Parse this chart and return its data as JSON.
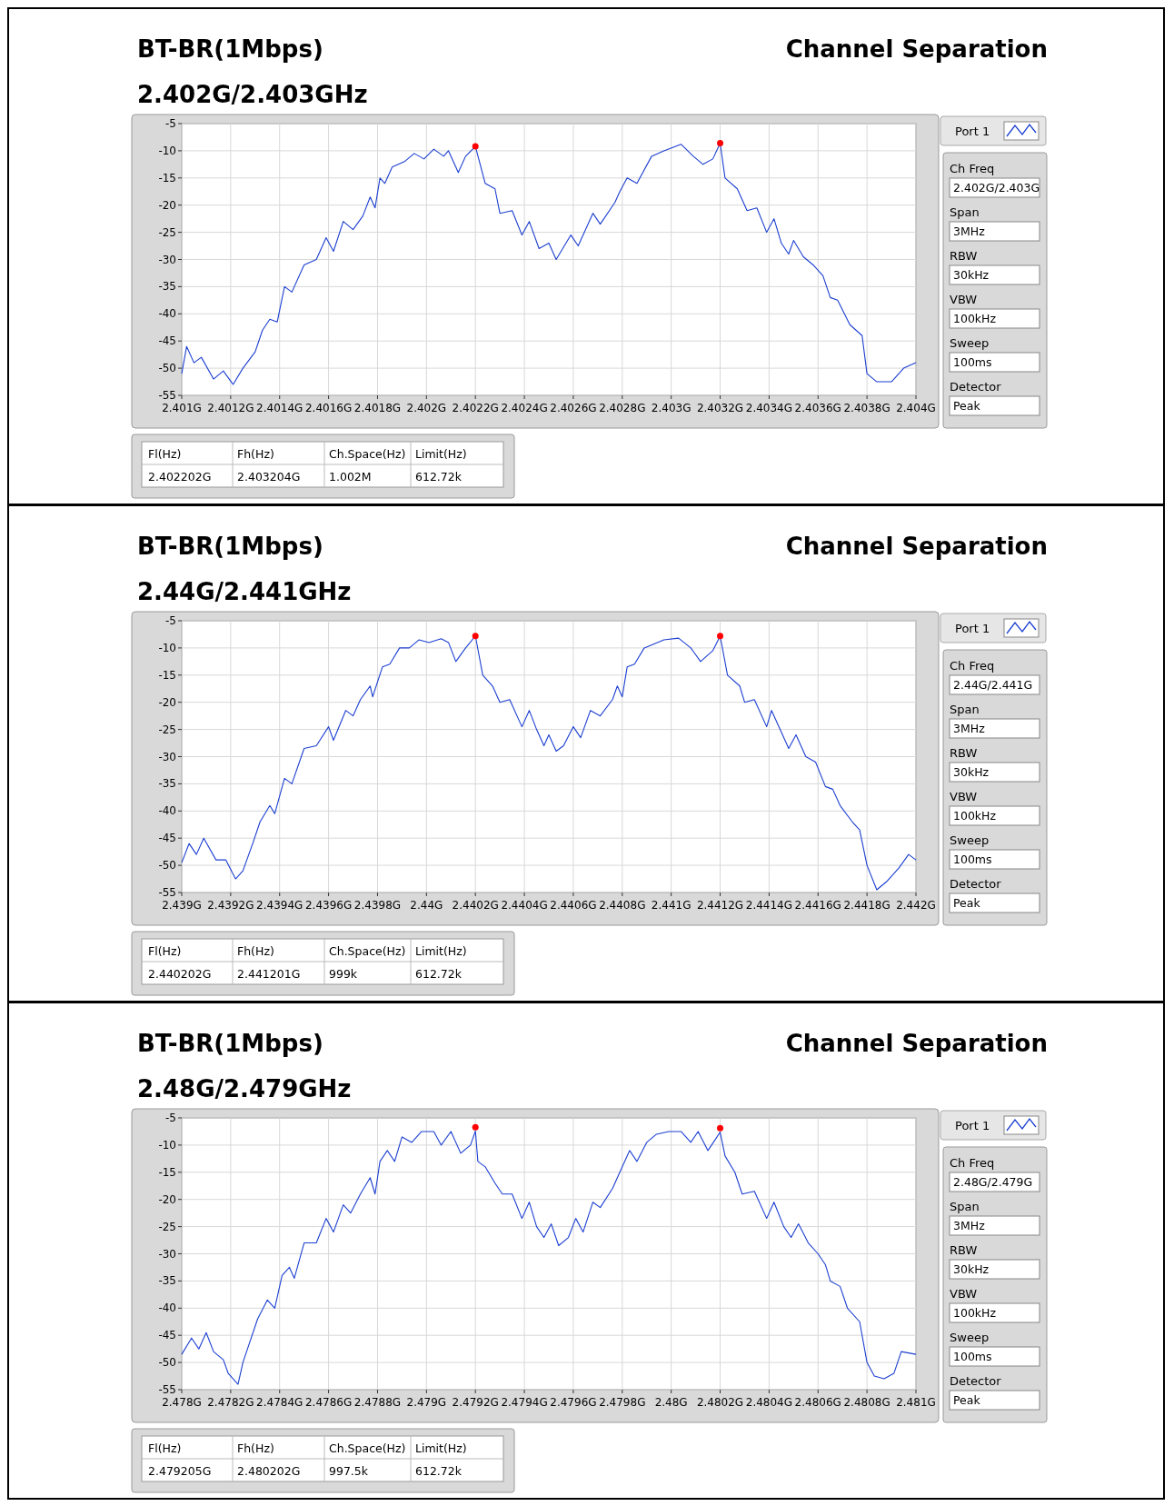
{
  "chart_data": [
    {
      "type": "line",
      "title": "BT-BR(1Mbps)",
      "subtitle": "2.402G/2.403GHz",
      "annotations": [
        "Channel Separation",
        "Ch Freq",
        "2.402G/2.403G",
        "Span",
        "3MHz",
        "RBW",
        "30kHz",
        "VBW",
        "100kHz",
        "Sweep",
        "100ms",
        "Detector",
        "Peak",
        "Fl(Hz)",
        "Fh(Hz)",
        "Ch.Space(Hz)",
        "Limit(Hz)",
        "2.402202G",
        "2.403204G",
        "1.002M",
        "612.72k"
      ],
      "xlim": [
        2.401,
        2.404
      ],
      "xticks": [
        {
          "value": 2.401,
          "label": "2.401G"
        },
        {
          "value": 2.4012,
          "label": "2.4012G"
        },
        {
          "value": 2.4014,
          "label": "2.4014G"
        },
        {
          "value": 2.4016,
          "label": "2.4016G"
        },
        {
          "value": 2.4018,
          "label": "2.4018G"
        },
        {
          "value": 2.402,
          "label": "2.402G"
        },
        {
          "value": 2.4022,
          "label": "2.4022G"
        },
        {
          "value": 2.4024,
          "label": "2.4024G"
        },
        {
          "value": 2.4026,
          "label": "2.4026G"
        },
        {
          "value": 2.4028,
          "label": "2.4028G"
        },
        {
          "value": 2.403,
          "label": "2.403G"
        },
        {
          "value": 2.4032,
          "label": "2.4032G"
        },
        {
          "value": 2.4034,
          "label": "2.4034G"
        },
        {
          "value": 2.4036,
          "label": "2.4036G"
        },
        {
          "value": 2.4038,
          "label": "2.4038G"
        },
        {
          "value": 2.404,
          "label": "2.404G"
        }
      ],
      "ylim": [
        -55,
        -5
      ],
      "yticks": [
        -55,
        -50,
        -45,
        -40,
        -35,
        -30,
        -25,
        -20,
        -15,
        -10,
        -5
      ],
      "grid": true,
      "legend": "top right",
      "series": [
        {
          "name": "Port 1",
          "color": "#1c3fd1",
          "x": [
            2.401,
            2.40102,
            2.40105,
            2.40108,
            2.40113,
            2.40117,
            2.40121,
            2.40125,
            2.4013,
            2.40133,
            2.40136,
            2.40139,
            2.40142,
            2.40145,
            2.4015,
            2.40155,
            2.40159,
            2.40162,
            2.40166,
            2.4017,
            2.40174,
            2.40177,
            2.40179,
            2.40181,
            2.40183,
            2.40186,
            2.40191,
            2.40195,
            2.40199,
            2.40203,
            2.40207,
            2.40209,
            2.40213,
            2.40216,
            2.4022,
            2.40224,
            2.40228,
            2.4023,
            2.40235,
            2.40239,
            2.40242,
            2.40246,
            2.4025,
            2.40253,
            2.40259,
            2.40262,
            2.40268,
            2.40271,
            2.40277,
            2.40279,
            2.40282,
            2.40286,
            2.40292,
            2.40297,
            2.40304,
            2.40309,
            2.40313,
            2.40317,
            2.4032,
            2.40322,
            2.40327,
            2.40331,
            2.40335,
            2.40339,
            2.40342,
            2.40345,
            2.40348,
            2.4035,
            2.40354,
            2.40358,
            2.40362,
            2.40365,
            2.40368,
            2.40373,
            2.40378,
            2.4038,
            2.40384,
            2.4039,
            2.40395,
            2.404
          ],
          "values": [
            -51,
            -46,
            -49,
            -48,
            -52,
            -50.5,
            -53,
            -50,
            -47,
            -43,
            -41,
            -41.5,
            -35,
            -36,
            -31,
            -30,
            -26,
            -28.5,
            -23,
            -24.5,
            -22,
            -18.5,
            -20.5,
            -15,
            -16,
            -13,
            -12,
            -10.5,
            -11.5,
            -9.7,
            -11,
            -10,
            -14,
            -11,
            -9.2,
            -16,
            -17,
            -21.5,
            -21,
            -25.5,
            -23,
            -28,
            -27,
            -30,
            -25.5,
            -27.5,
            -21.5,
            -23.5,
            -19.5,
            -17.5,
            -15,
            -16,
            -11,
            -10,
            -8.8,
            -11,
            -12.5,
            -11.5,
            -8.6,
            -15,
            -17,
            -21,
            -20.5,
            -25,
            -22.5,
            -27,
            -29,
            -26.5,
            -29.5,
            -31,
            -33,
            -37,
            -37.5,
            -42,
            -44,
            -51,
            -52.5,
            -52.5,
            -50,
            -49
          ]
        },
        {
          "type": "scatter",
          "marker": "circle",
          "color": "#ff0000",
          "x": [
            2.4022,
            2.4032
          ],
          "values": [
            -9.2,
            -8.6
          ]
        }
      ]
    },
    {
      "type": "line",
      "title": "BT-BR(1Mbps)",
      "subtitle": "2.44G/2.441GHz",
      "annotations": [
        "Channel Separation",
        "Ch Freq",
        "2.44G/2.441G",
        "Span",
        "3MHz",
        "RBW",
        "30kHz",
        "VBW",
        "100kHz",
        "Sweep",
        "100ms",
        "Detector",
        "Peak",
        "Fl(Hz)",
        "Fh(Hz)",
        "Ch.Space(Hz)",
        "Limit(Hz)",
        "2.440202G",
        "2.441201G",
        "999k",
        "612.72k"
      ],
      "xlim": [
        2.439,
        2.442
      ],
      "xticks": [
        {
          "value": 2.439,
          "label": "2.439G"
        },
        {
          "value": 2.4392,
          "label": "2.4392G"
        },
        {
          "value": 2.4394,
          "label": "2.4394G"
        },
        {
          "value": 2.4396,
          "label": "2.4396G"
        },
        {
          "value": 2.4398,
          "label": "2.4398G"
        },
        {
          "value": 2.44,
          "label": "2.44G"
        },
        {
          "value": 2.4402,
          "label": "2.4402G"
        },
        {
          "value": 2.4404,
          "label": "2.4404G"
        },
        {
          "value": 2.4406,
          "label": "2.4406G"
        },
        {
          "value": 2.4408,
          "label": "2.4408G"
        },
        {
          "value": 2.441,
          "label": "2.441G"
        },
        {
          "value": 2.4412,
          "label": "2.4412G"
        },
        {
          "value": 2.4414,
          "label": "2.4414G"
        },
        {
          "value": 2.4416,
          "label": "2.4416G"
        },
        {
          "value": 2.4418,
          "label": "2.4418G"
        },
        {
          "value": 2.442,
          "label": "2.442G"
        }
      ],
      "ylim": [
        -55,
        -5
      ],
      "yticks": [
        -55,
        -50,
        -45,
        -40,
        -35,
        -30,
        -25,
        -20,
        -15,
        -10,
        -5
      ],
      "grid": true,
      "legend": "top right",
      "series": [
        {
          "name": "Port 1",
          "color": "#1c3fd1",
          "x": [
            2.439,
            2.43903,
            2.43906,
            2.43909,
            2.43914,
            2.43918,
            2.43922,
            2.43925,
            2.43929,
            2.43932,
            2.43936,
            2.43938,
            2.43942,
            2.43945,
            2.4395,
            2.43955,
            2.4396,
            2.43962,
            2.43967,
            2.4397,
            2.43973,
            2.43977,
            2.43978,
            2.43982,
            2.43985,
            2.43989,
            2.43993,
            2.43997,
            2.44001,
            2.44006,
            2.44009,
            2.44012,
            2.44016,
            2.4402,
            2.44023,
            2.44027,
            2.4403,
            2.44034,
            2.44039,
            2.44042,
            2.44045,
            2.44048,
            2.4405,
            2.44053,
            2.44056,
            2.4406,
            2.44063,
            2.44067,
            2.44071,
            2.44076,
            2.44078,
            2.4408,
            2.44082,
            2.44085,
            2.44089,
            2.44097,
            2.44103,
            2.44108,
            2.44112,
            2.44117,
            2.4412,
            2.44123,
            2.44128,
            2.4413,
            2.44134,
            2.44139,
            2.44141,
            2.44145,
            2.44148,
            2.44151,
            2.44155,
            2.44159,
            2.44163,
            2.44166,
            2.44169,
            2.44174,
            2.44177,
            2.4418,
            2.44184,
            2.44188,
            2.44193,
            2.44197,
            2.442
          ],
          "values": [
            -49.5,
            -46,
            -48,
            -45,
            -49,
            -49,
            -52.5,
            -51,
            -46,
            -42,
            -39,
            -40.5,
            -34,
            -35,
            -28.5,
            -28,
            -24.5,
            -27,
            -21.5,
            -22.5,
            -19.5,
            -17,
            -19,
            -13.5,
            -13,
            -10,
            -10,
            -8.5,
            -9,
            -8.3,
            -9,
            -12.5,
            -10,
            -7.8,
            -15,
            -17,
            -20,
            -19.5,
            -24.5,
            -21.5,
            -25,
            -28,
            -26,
            -29,
            -28,
            -24.5,
            -26.5,
            -21.5,
            -22.5,
            -19.5,
            -17,
            -19,
            -13.5,
            -13,
            -10,
            -8.5,
            -8.2,
            -10,
            -12.5,
            -10.5,
            -7.8,
            -15,
            -17,
            -20,
            -19.5,
            -24.5,
            -21.5,
            -25.5,
            -28.5,
            -26,
            -30,
            -31,
            -35.5,
            -36,
            -39,
            -42,
            -43.5,
            -50,
            -54.5,
            -53,
            -50.5,
            -48,
            -49
          ]
        },
        {
          "type": "scatter",
          "marker": "circle",
          "color": "#ff0000",
          "x": [
            2.4402,
            2.4412
          ],
          "values": [
            -7.8,
            -7.8
          ]
        }
      ]
    },
    {
      "type": "line",
      "title": "BT-BR(1Mbps)",
      "subtitle": "2.48G/2.479GHz",
      "annotations": [
        "Channel Separation",
        "Ch Freq",
        "2.48G/2.479G",
        "Span",
        "3MHz",
        "RBW",
        "30kHz",
        "VBW",
        "100kHz",
        "Sweep",
        "100ms",
        "Detector",
        "Peak",
        "Fl(Hz)",
        "Fh(Hz)",
        "Ch.Space(Hz)",
        "Limit(Hz)",
        "2.479205G",
        "2.480202G",
        "997.5k",
        "612.72k"
      ],
      "xlim": [
        2.478,
        2.481
      ],
      "xticks": [
        {
          "value": 2.478,
          "label": "2.478G"
        },
        {
          "value": 2.4782,
          "label": "2.4782G"
        },
        {
          "value": 2.4784,
          "label": "2.4784G"
        },
        {
          "value": 2.4786,
          "label": "2.4786G"
        },
        {
          "value": 2.4788,
          "label": "2.4788G"
        },
        {
          "value": 2.479,
          "label": "2.479G"
        },
        {
          "value": 2.4792,
          "label": "2.4792G"
        },
        {
          "value": 2.4794,
          "label": "2.4794G"
        },
        {
          "value": 2.4796,
          "label": "2.4796G"
        },
        {
          "value": 2.4798,
          "label": "2.4798G"
        },
        {
          "value": 2.48,
          "label": "2.48G"
        },
        {
          "value": 2.4802,
          "label": "2.4802G"
        },
        {
          "value": 2.4804,
          "label": "2.4804G"
        },
        {
          "value": 2.4806,
          "label": "2.4806G"
        },
        {
          "value": 2.4808,
          "label": "2.4808G"
        },
        {
          "value": 2.481,
          "label": "2.481G"
        }
      ],
      "ylim": [
        -55,
        -5
      ],
      "yticks": [
        -55,
        -50,
        -45,
        -40,
        -35,
        -30,
        -25,
        -20,
        -15,
        -10,
        -5
      ],
      "grid": true,
      "legend": "top right",
      "series": [
        {
          "name": "Port 1",
          "color": "#1c3fd1",
          "x": [
            2.478,
            2.47804,
            2.47807,
            2.4781,
            2.47813,
            2.47817,
            2.47819,
            2.47823,
            2.47825,
            2.47828,
            2.47831,
            2.47835,
            2.47838,
            2.47841,
            2.47844,
            2.47846,
            2.4785,
            2.47855,
            2.47859,
            2.47862,
            2.47866,
            2.47869,
            2.47873,
            2.47877,
            2.47879,
            2.47881,
            2.47884,
            2.47887,
            2.4789,
            2.47894,
            2.47898,
            2.47903,
            2.47906,
            2.4791,
            2.47914,
            2.47918,
            2.4792,
            2.47921,
            2.47924,
            2.47928,
            2.47931,
            2.47935,
            2.47939,
            2.47942,
            2.47945,
            2.47948,
            2.47951,
            2.47954,
            2.47958,
            2.47961,
            2.47964,
            2.47968,
            2.47971,
            2.47976,
            2.47979,
            2.47983,
            2.47986,
            2.4799,
            2.47994,
            2.47999,
            2.48004,
            2.48008,
            2.48011,
            2.48015,
            2.48018,
            2.4802,
            2.48022,
            2.48026,
            2.48029,
            2.48034,
            2.48039,
            2.48042,
            2.48046,
            2.48049,
            2.48052,
            2.48056,
            2.4806,
            2.48063,
            2.48065,
            2.48069,
            2.48072,
            2.48077,
            2.4808,
            2.48083,
            2.48087,
            2.48091,
            2.48094,
            2.481
          ],
          "values": [
            -48.5,
            -45.5,
            -47.5,
            -44.5,
            -48,
            -49.5,
            -52,
            -54,
            -50,
            -46,
            -42,
            -38.5,
            -40,
            -34,
            -32.5,
            -34.5,
            -28,
            -28,
            -23.5,
            -26,
            -21,
            -22.5,
            -19,
            -16,
            -19,
            -13,
            -11,
            -13,
            -8.5,
            -9.5,
            -7.5,
            -7.5,
            -10,
            -7.5,
            -11.5,
            -10,
            -7.4,
            -13,
            -14,
            -17,
            -19,
            -19,
            -23.5,
            -20.5,
            -25,
            -27,
            -24.5,
            -28.5,
            -27,
            -23.5,
            -26,
            -20.5,
            -21.5,
            -18,
            -15,
            -11,
            -13,
            -9.5,
            -8,
            -7.5,
            -7.5,
            -9.5,
            -7.5,
            -11,
            -9,
            -7.6,
            -12,
            -15,
            -19,
            -18.5,
            -23.5,
            -20.5,
            -25,
            -27,
            -24.5,
            -28,
            -30,
            -32,
            -35,
            -36,
            -40,
            -42.5,
            -50,
            -52.5,
            -53,
            -52,
            -48,
            -48.5
          ]
        },
        {
          "type": "scatter",
          "marker": "circle",
          "color": "#ff0000",
          "x": [
            2.4792,
            2.4802
          ],
          "values": [
            -6.7,
            -6.9
          ]
        }
      ]
    }
  ]
}
